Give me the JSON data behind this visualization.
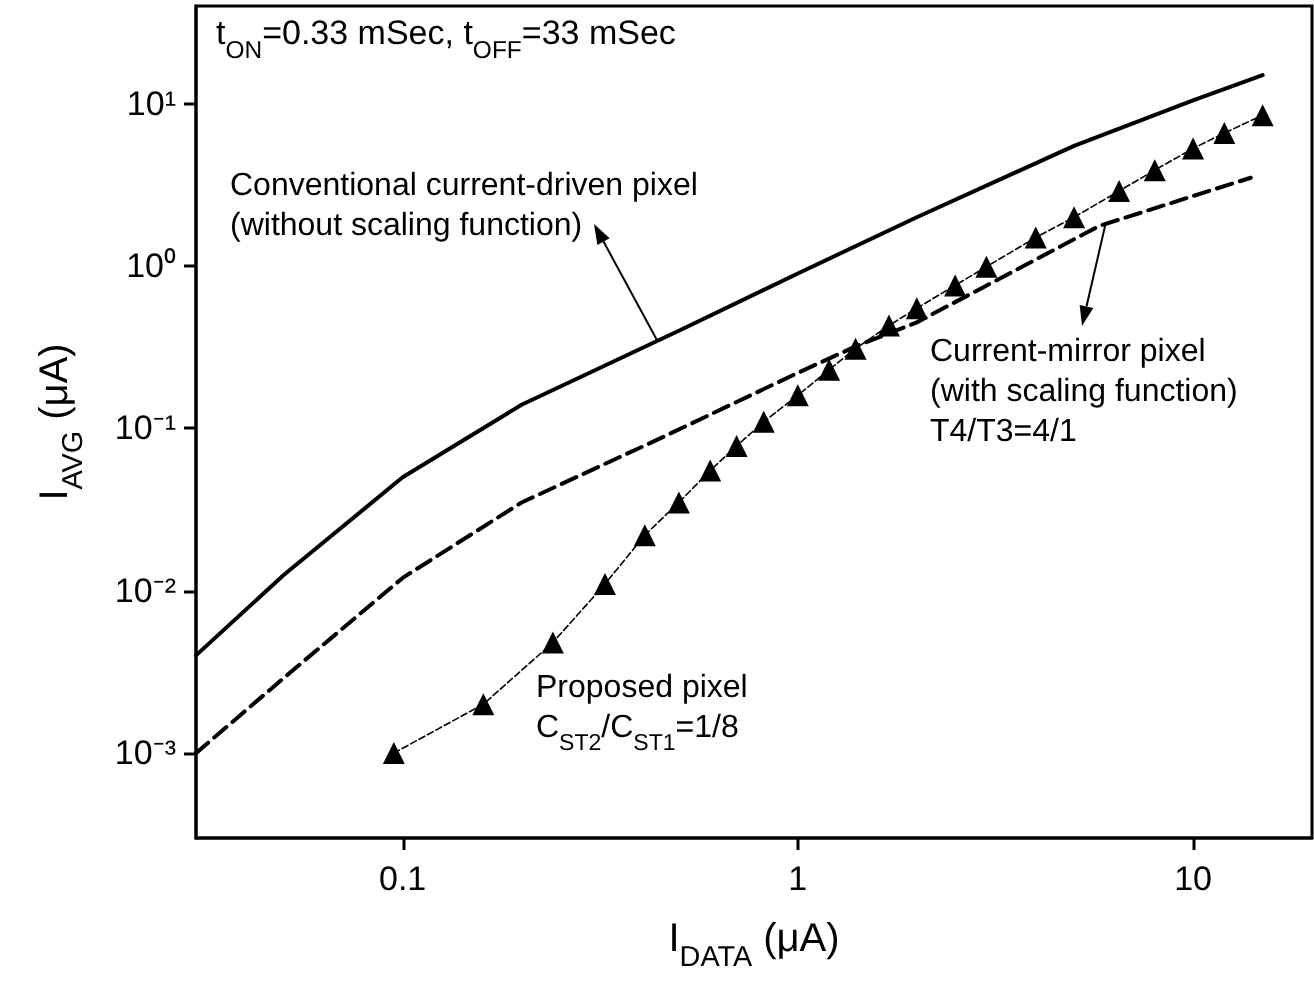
{
  "chart_data": {
    "type": "line",
    "title": "t$_{ON}$=0.33 mSec, t$_{OFF}$=33 mSec",
    "xlabel": "I$_{DATA}$ (μA)",
    "ylabel": "I$_{AVG}$ (μA)",
    "log": "xy",
    "grid": false,
    "xlim": [
      0.03,
      20
    ],
    "xticks": [
      0.1,
      1,
      10
    ],
    "ylim": [
      0.0003,
      40
    ],
    "yticks": [
      {
        "value": 0.001,
        "label": "10⁻³"
      },
      {
        "value": 0.01,
        "label": "10⁻²"
      },
      {
        "value": 0.1,
        "label": "10⁻¹"
      },
      {
        "value": 1,
        "label": "10⁰"
      },
      {
        "value": 10,
        "label": "10¹"
      }
    ],
    "series": [
      {
        "color": "#000000",
        "line_style": "solid",
        "marker": "none",
        "x": [
          0.03,
          0.05,
          0.1,
          0.2,
          0.5,
          1,
          2,
          5,
          10,
          15
        ],
        "values": [
          0.004,
          0.0125,
          0.05,
          0.14,
          0.4,
          0.9,
          2,
          5.5,
          10.5,
          15
        ]
      },
      {
        "color": "#000000",
        "line_style": "dashed",
        "marker": "none",
        "x": [
          0.03,
          0.05,
          0.1,
          0.2,
          0.44,
          1,
          1.4,
          2,
          5.8,
          10,
          14
        ],
        "values": [
          0.001,
          0.0029,
          0.012,
          0.035,
          0.085,
          0.22,
          0.32,
          0.45,
          1.77,
          2.7,
          3.5
        ]
      },
      {
        "color": "#000000",
        "line_style": "dashed",
        "marker": "triangle",
        "x": [
          0.095,
          0.16,
          0.24,
          0.325,
          0.41,
          0.5,
          0.6,
          0.7,
          0.82,
          1.0,
          1.2,
          1.4,
          1.7,
          2,
          2.5,
          3,
          4,
          5,
          6.5,
          8,
          10,
          12,
          15
        ],
        "values": [
          0.001,
          0.002,
          0.0048,
          0.011,
          0.022,
          0.035,
          0.055,
          0.078,
          0.11,
          0.16,
          0.23,
          0.31,
          0.43,
          0.55,
          0.76,
          0.99,
          1.5,
          2.0,
          2.9,
          3.9,
          5.3,
          6.6,
          8.5
        ]
      }
    ],
    "annotations": [
      {
        "text": "Conventional current-driven pixel\n(without scaling function)",
        "x": 0.44,
        "y": 0.35
      },
      {
        "text": "Current-mirror pixel\n(with scaling function)\nT4/T3=4/1",
        "x": 6,
        "y": 1.8
      },
      "Proposed pixel\nC$_{ST2}$/C$_{ST1}$=1/8"
    ]
  }
}
